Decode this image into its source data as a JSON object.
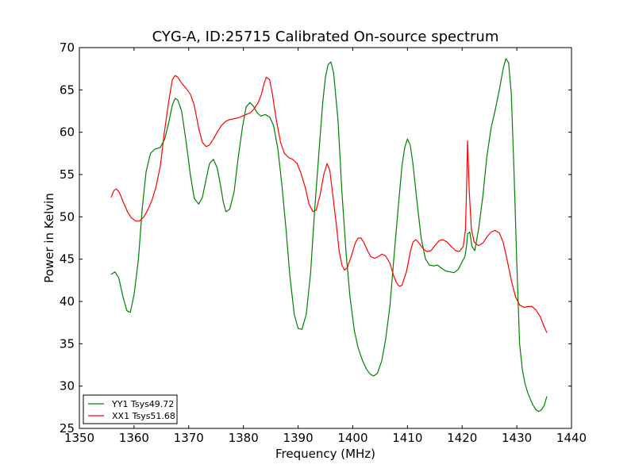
{
  "chart_data": {
    "type": "line",
    "title": "CYG-A, ID:25715 Calibrated On-source spectrum",
    "xlabel": "Frequency (MHz)",
    "ylabel": "Power in Kelvin",
    "xlim": [
      1350,
      1440
    ],
    "ylim": [
      25,
      70
    ],
    "xticks": [
      1350,
      1360,
      1370,
      1380,
      1390,
      1400,
      1410,
      1420,
      1430,
      1440
    ],
    "yticks": [
      25,
      30,
      35,
      40,
      45,
      50,
      55,
      60,
      65,
      70
    ],
    "grid": false,
    "legend_position": "lower-left",
    "series": [
      {
        "name": "YY1 Tsys49.72",
        "color": "#008000",
        "x": [
          1355.8,
          1356.5,
          1357.2,
          1358.0,
          1358.7,
          1359.3,
          1360.0,
          1360.8,
          1361.5,
          1362.2,
          1363.0,
          1363.8,
          1364.8,
          1365.6,
          1366.3,
          1367.0,
          1367.5,
          1368.0,
          1368.7,
          1369.5,
          1370.3,
          1371.0,
          1371.8,
          1372.5,
          1373.2,
          1373.8,
          1374.5,
          1375.2,
          1375.8,
          1376.3,
          1376.8,
          1377.5,
          1378.3,
          1379.0,
          1379.8,
          1380.5,
          1381.2,
          1381.8,
          1382.5,
          1383.2,
          1384.0,
          1384.8,
          1385.5,
          1386.3,
          1387.0,
          1387.8,
          1388.5,
          1389.3,
          1390.0,
          1390.7,
          1391.5,
          1392.3,
          1393.0,
          1393.8,
          1394.5,
          1395.0,
          1395.5,
          1396.0,
          1396.5,
          1397.3,
          1398.0,
          1398.8,
          1399.5,
          1400.3,
          1401.0,
          1401.8,
          1402.5,
          1403.2,
          1403.8,
          1404.5,
          1405.3,
          1406.0,
          1406.8,
          1407.5,
          1408.3,
          1409.0,
          1409.5,
          1410.0,
          1410.5,
          1411.0,
          1411.8,
          1412.5,
          1413.3,
          1414.0,
          1414.8,
          1415.5,
          1416.3,
          1417.0,
          1417.8,
          1418.5,
          1419.3,
          1420.0,
          1420.5,
          1420.8,
          1421.0,
          1421.4,
          1421.8,
          1422.3,
          1423.0,
          1423.8,
          1424.5,
          1425.3,
          1426.0,
          1426.8,
          1427.5,
          1428.0,
          1428.5,
          1429.0,
          1429.5,
          1430.0,
          1430.5,
          1431.0,
          1431.5,
          1432.0,
          1432.5,
          1433.0,
          1433.5,
          1434.0,
          1434.5,
          1435.0,
          1435.5
        ],
        "y": [
          43.2,
          43.5,
          42.8,
          40.5,
          38.9,
          38.7,
          40.8,
          45.0,
          51.0,
          55.3,
          57.5,
          58.0,
          58.2,
          59.2,
          61.0,
          63.2,
          64.0,
          63.8,
          62.5,
          59.0,
          55.0,
          52.2,
          51.5,
          52.3,
          54.5,
          56.3,
          56.8,
          55.8,
          53.8,
          51.8,
          50.6,
          50.9,
          53.0,
          56.8,
          60.5,
          63.0,
          63.5,
          63.1,
          62.3,
          61.9,
          62.1,
          61.8,
          60.8,
          58.0,
          54.0,
          48.5,
          43.0,
          38.5,
          36.8,
          36.7,
          38.5,
          43.5,
          50.5,
          57.5,
          63.5,
          66.5,
          68.0,
          68.3,
          67.0,
          61.5,
          53.0,
          45.5,
          40.5,
          36.5,
          34.5,
          33.0,
          32.0,
          31.4,
          31.2,
          31.5,
          33.0,
          35.5,
          39.5,
          45.0,
          51.0,
          56.0,
          58.2,
          59.2,
          58.5,
          56.3,
          51.5,
          47.5,
          45.0,
          44.3,
          44.2,
          44.3,
          43.9,
          43.6,
          43.5,
          43.4,
          43.8,
          44.7,
          45.3,
          46.5,
          48.0,
          48.2,
          46.5,
          46.0,
          48.5,
          52.5,
          57.0,
          60.5,
          62.5,
          65.0,
          67.5,
          68.7,
          68.2,
          64.5,
          55.0,
          44.5,
          35.0,
          32.0,
          30.3,
          29.2,
          28.4,
          27.7,
          27.2,
          27.0,
          27.2,
          27.7,
          28.8
        ]
      },
      {
        "name": "XX1 Tsys51.68",
        "color": "#ff0000",
        "x": [
          1355.8,
          1356.3,
          1356.8,
          1357.3,
          1358.0,
          1358.8,
          1359.5,
          1360.3,
          1361.0,
          1361.8,
          1362.5,
          1363.3,
          1364.0,
          1364.8,
          1365.5,
          1366.3,
          1367.0,
          1367.5,
          1368.0,
          1368.7,
          1369.5,
          1370.3,
          1371.0,
          1371.8,
          1372.5,
          1373.2,
          1373.8,
          1374.5,
          1375.2,
          1376.0,
          1376.8,
          1377.5,
          1378.3,
          1379.0,
          1379.8,
          1380.5,
          1381.3,
          1382.0,
          1382.7,
          1383.3,
          1383.8,
          1384.2,
          1384.8,
          1385.3,
          1386.0,
          1386.8,
          1387.5,
          1388.3,
          1389.0,
          1389.8,
          1390.5,
          1391.3,
          1392.0,
          1392.7,
          1393.3,
          1394.0,
          1394.7,
          1395.3,
          1395.8,
          1396.3,
          1397.0,
          1397.5,
          1398.0,
          1398.5,
          1399.0,
          1399.8,
          1400.5,
          1401.0,
          1401.5,
          1402.0,
          1402.7,
          1403.3,
          1404.0,
          1404.7,
          1405.3,
          1406.0,
          1406.8,
          1407.5,
          1408.0,
          1408.5,
          1409.0,
          1409.8,
          1410.5,
          1411.0,
          1411.5,
          1412.0,
          1412.8,
          1413.5,
          1414.3,
          1415.0,
          1415.8,
          1416.5,
          1417.3,
          1418.0,
          1418.8,
          1419.5,
          1420.2,
          1420.6,
          1420.8,
          1421.0,
          1421.3,
          1421.7,
          1422.2,
          1423.0,
          1423.8,
          1424.5,
          1425.3,
          1426.0,
          1426.8,
          1427.5,
          1428.2,
          1429.0,
          1429.8,
          1430.5,
          1431.3,
          1432.0,
          1432.8,
          1433.5,
          1434.3,
          1435.0,
          1435.5
        ],
        "y": [
          52.3,
          53.1,
          53.3,
          52.9,
          51.8,
          50.6,
          49.9,
          49.5,
          49.5,
          50.0,
          50.8,
          52.0,
          53.5,
          56.0,
          59.8,
          63.5,
          66.2,
          66.7,
          66.5,
          65.8,
          65.2,
          64.5,
          63.2,
          60.5,
          58.8,
          58.3,
          58.5,
          59.2,
          60.0,
          60.8,
          61.3,
          61.5,
          61.6,
          61.7,
          61.9,
          62.1,
          62.3,
          62.8,
          63.5,
          64.5,
          65.8,
          66.5,
          66.2,
          64.5,
          61.5,
          58.8,
          57.5,
          57.0,
          56.8,
          56.3,
          55.2,
          53.5,
          51.5,
          50.6,
          50.8,
          52.5,
          55.0,
          56.3,
          55.5,
          52.8,
          49.0,
          46.0,
          44.3,
          43.7,
          44.0,
          45.5,
          47.0,
          47.5,
          47.5,
          47.0,
          46.0,
          45.3,
          45.1,
          45.3,
          45.6,
          45.4,
          44.5,
          43.0,
          42.2,
          41.8,
          41.9,
          43.5,
          45.8,
          47.0,
          47.3,
          47.0,
          46.3,
          45.9,
          46.0,
          46.6,
          47.2,
          47.3,
          47.0,
          46.5,
          46.0,
          45.9,
          46.5,
          48.5,
          53.0,
          59.0,
          53.0,
          48.5,
          47.0,
          46.6,
          46.9,
          47.6,
          48.2,
          48.4,
          48.1,
          47.0,
          45.0,
          42.5,
          40.5,
          39.6,
          39.3,
          39.4,
          39.4,
          39.0,
          38.2,
          37.0,
          36.3
        ]
      }
    ]
  }
}
